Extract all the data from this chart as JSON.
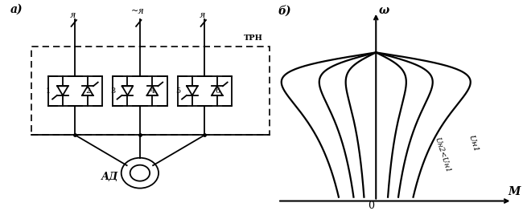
{
  "fig_width": 6.5,
  "fig_height": 2.63,
  "dpi": 100,
  "bg_color": "#ffffff",
  "label_a": "а)",
  "label_b": "б)",
  "trn_label": "ТРН",
  "ad_label": "АД",
  "omega_label": "ω",
  "m_label": "M",
  "o_label": "0",
  "u_n1_label": "Uн1",
  "u_n2_label": "Uн2<Uн1",
  "phase_labels": [
    "я",
    "~я",
    "я"
  ]
}
